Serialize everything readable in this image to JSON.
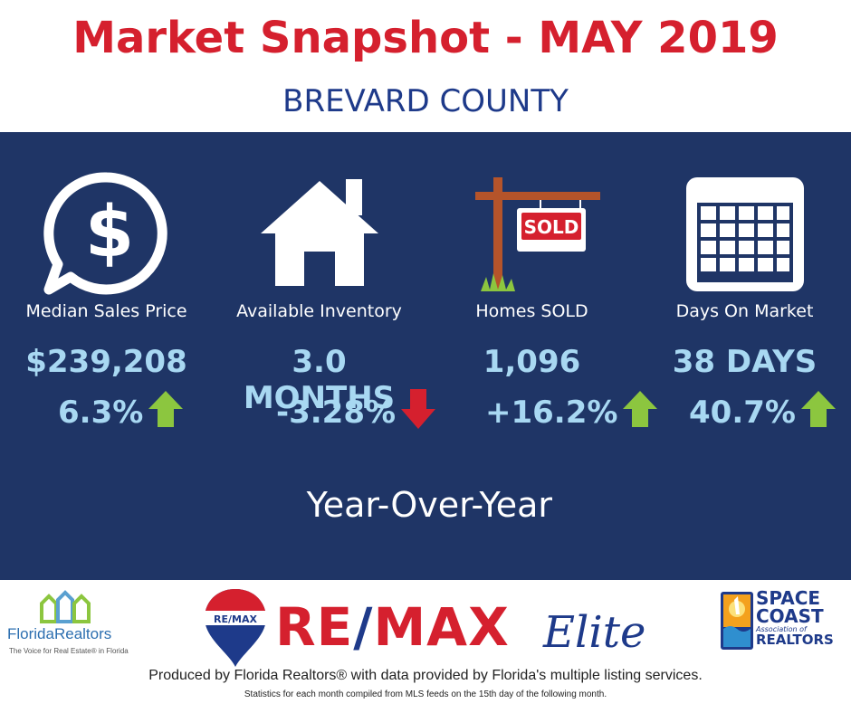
{
  "header": {
    "title": "Market Snapshot - MAY 2019",
    "subtitle": "BREVARD COUNTY"
  },
  "metrics": [
    {
      "label": "Median Sales Price",
      "value": "$239,208",
      "change": "6.3%",
      "direction": "up",
      "icon": "dollar-speech-bubble-icon"
    },
    {
      "label": "Available Inventory",
      "value": "3.0 MONTHS",
      "change": "-3.28%",
      "direction": "down",
      "icon": "house-icon"
    },
    {
      "label": "Homes SOLD",
      "value": "1,096",
      "change": "+16.2%",
      "direction": "up",
      "icon": "sold-sign-icon"
    },
    {
      "label": "Days On Market",
      "value": "38 DAYS",
      "change": "40.7%",
      "direction": "up",
      "icon": "calendar-icon"
    }
  ],
  "period_label": "Year-Over-Year",
  "logos": {
    "florida_realtors": {
      "name_part1": "Florida",
      "name_part2": "Realtors",
      "tagline": "The Voice for Real Estate® in Florida"
    },
    "remax": {
      "brand_part1": "RE",
      "slash": "/",
      "brand_part2": "MAX",
      "suffix": "Elite",
      "balloon_text": "RE/MAX"
    },
    "space_coast": {
      "line1": "SPACE",
      "line2": "COAST",
      "line3": "Association of",
      "line4": "REALTORS"
    }
  },
  "footer": {
    "produced_by": "Produced by Florida Realtors® with data provided by Florida's multiple listing services.",
    "statistics_note": "Statistics for each month compiled from MLS feeds on the 15th day of the following month."
  },
  "colors": {
    "title_red": "#d5202e",
    "navy": "#1e3a8a",
    "panel": "#1f3566",
    "value_blue": "#a8d8f2",
    "up_green": "#8cc63f",
    "down_red": "#d5202e"
  }
}
